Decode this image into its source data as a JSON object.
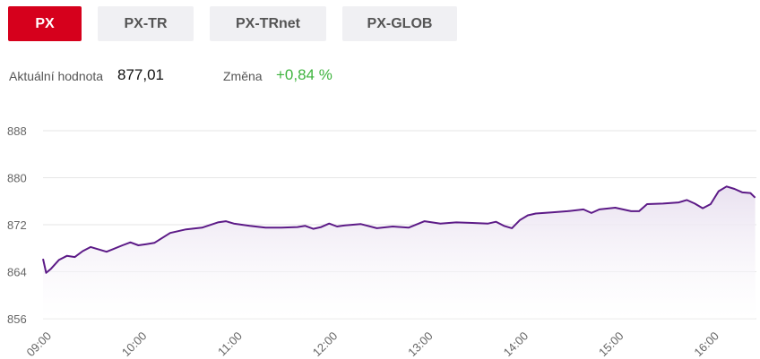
{
  "tabs": [
    {
      "label": "PX",
      "active": true
    },
    {
      "label": "PX-TR",
      "active": false
    },
    {
      "label": "PX-TRnet",
      "active": false
    },
    {
      "label": "PX-GLOB",
      "active": false
    }
  ],
  "stats": {
    "value_label": "Aktuální hodnota",
    "value": "877,01",
    "change_label": "Změna",
    "change": "+0,84 %"
  },
  "colors": {
    "active_tab": "#d6001c",
    "line": "#5c1a87",
    "area": "#e9e1f0",
    "positive": "#3fb43f"
  },
  "chart_data": {
    "type": "area",
    "y_ticks": [
      "888",
      "880",
      "872",
      "864",
      "856"
    ],
    "y_tick_values": [
      888,
      880,
      872,
      864,
      856
    ],
    "ylim": [
      856,
      888
    ],
    "x_ticks": [
      "09:00",
      "10:00",
      "11:00",
      "12:00",
      "13:00",
      "14:00",
      "15:00",
      "16:00"
    ],
    "xlim_hours": [
      9.0,
      16.48
    ],
    "grid": true,
    "series": [
      {
        "x": [
          "09:00",
          "09:02",
          "09:05",
          "09:10",
          "09:15",
          "09:20",
          "09:25",
          "09:30",
          "09:40",
          "09:50",
          "09:55",
          "10:00",
          "10:05",
          "10:10",
          "10:20",
          "10:30",
          "10:40",
          "10:50",
          "10:55",
          "11:00",
          "11:10",
          "11:20",
          "11:30",
          "11:40",
          "11:45",
          "11:50",
          "11:55",
          "12:00",
          "12:05",
          "12:10",
          "12:20",
          "12:30",
          "12:40",
          "12:50",
          "13:00",
          "13:10",
          "13:20",
          "13:30",
          "13:40",
          "13:45",
          "13:50",
          "13:55",
          "14:00",
          "14:05",
          "14:10",
          "14:20",
          "14:30",
          "14:40",
          "14:45",
          "14:50",
          "15:00",
          "15:10",
          "15:15",
          "15:20",
          "15:30",
          "15:40",
          "15:45",
          "15:50",
          "15:55",
          "16:00",
          "16:05",
          "16:10",
          "16:15",
          "16:20",
          "16:25",
          "16:28"
        ],
        "y": [
          866.2,
          863.8,
          864.5,
          866.0,
          866.7,
          866.5,
          867.5,
          868.2,
          867.4,
          868.5,
          869.0,
          868.5,
          868.7,
          868.9,
          870.6,
          871.2,
          871.5,
          872.4,
          872.6,
          872.2,
          871.8,
          871.5,
          871.5,
          871.6,
          871.8,
          871.3,
          871.6,
          872.2,
          871.7,
          871.9,
          872.1,
          871.4,
          871.7,
          871.5,
          872.6,
          872.2,
          872.4,
          872.3,
          872.2,
          872.5,
          871.8,
          871.4,
          872.8,
          873.6,
          873.9,
          874.1,
          874.3,
          874.6,
          874.0,
          874.6,
          874.9,
          874.3,
          874.3,
          875.5,
          875.6,
          875.8,
          876.2,
          875.6,
          874.8,
          875.5,
          877.7,
          878.5,
          878.1,
          877.5,
          877.4,
          876.6
        ]
      }
    ]
  }
}
